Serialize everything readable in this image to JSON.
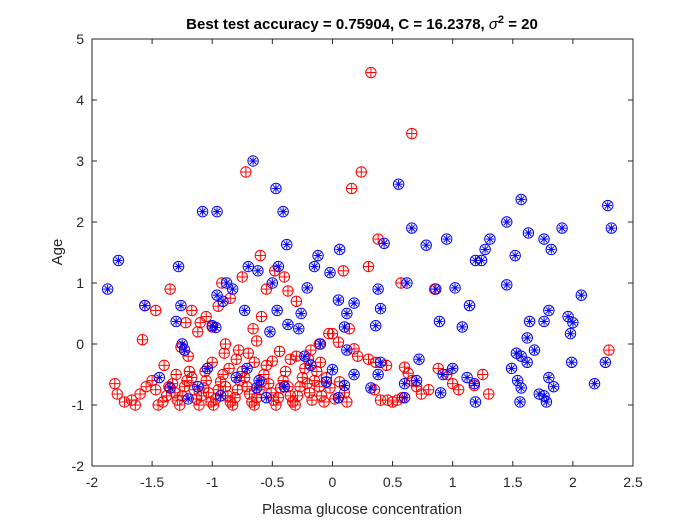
{
  "chart_data": {
    "type": "scatter",
    "title": {
      "prefix": "Best test accuracy = 0.75904, C = 16.2378, ",
      "sigma_symbol": "σ",
      "superscript": "2",
      "suffix": " = 20"
    },
    "xlabel": "Plasma glucose concentration",
    "ylabel": "Age",
    "xlim": [
      -2,
      2.5
    ],
    "ylim": [
      -2,
      5
    ],
    "xticks": [
      "-2",
      "-1.5",
      "-1",
      "-0.5",
      "0",
      "0.5",
      "1",
      "1.5",
      "2",
      "2.5"
    ],
    "yticks": [
      "-2",
      "-1",
      "0",
      "1",
      "2",
      "3",
      "4",
      "5"
    ],
    "grid": false,
    "legend": "none",
    "colors": {
      "red": "#ff0000",
      "blue": "#0000ff",
      "axis": "#262626"
    },
    "series": [
      {
        "marker": "circle with plus",
        "color": "#ff0000",
        "points": [
          [
            0.32,
            4.45
          ],
          [
            0.66,
            3.45
          ],
          [
            0.24,
            2.82
          ],
          [
            -0.72,
            2.82
          ],
          [
            0.16,
            2.55
          ],
          [
            0.38,
            1.72
          ],
          [
            -0.6,
            1.45
          ],
          [
            0.09,
            1.2
          ],
          [
            0.3,
            1.27
          ],
          [
            0.57,
            1.0
          ],
          [
            0.85,
            0.9
          ],
          [
            -1.35,
            0.9
          ],
          [
            -0.92,
            1.0
          ],
          [
            -0.37,
            0.87
          ],
          [
            -0.3,
            0.7
          ],
          [
            -1.17,
            0.55
          ],
          [
            -1.1,
            0.35
          ],
          [
            -1.0,
            0.28
          ],
          [
            -1.22,
            0.35
          ],
          [
            -1.47,
            0.55
          ],
          [
            -1.56,
            0.63
          ],
          [
            -1.58,
            0.07
          ],
          [
            -1.26,
            -0.05
          ],
          [
            -0.59,
            0.45
          ],
          [
            -0.63,
            0.05
          ],
          [
            -0.66,
            0.25
          ],
          [
            -0.89,
            0.0
          ],
          [
            -0.9,
            -0.15
          ],
          [
            -0.78,
            -0.1
          ],
          [
            -0.7,
            -0.15
          ],
          [
            -0.44,
            -0.12
          ],
          [
            -0.3,
            -0.2
          ],
          [
            -0.18,
            -0.1
          ],
          [
            -0.11,
            0.0
          ],
          [
            -0.03,
            0.17
          ],
          [
            0.0,
            0.17
          ],
          [
            0.05,
            0.03
          ],
          [
            0.14,
            0.25
          ],
          [
            0.18,
            -0.08
          ],
          [
            0.21,
            -0.2
          ],
          [
            0.3,
            -0.25
          ],
          [
            0.36,
            -0.3
          ],
          [
            0.45,
            -0.35
          ],
          [
            0.6,
            -0.38
          ],
          [
            0.63,
            -0.48
          ],
          [
            0.66,
            -0.6
          ],
          [
            0.7,
            -0.7
          ],
          [
            0.74,
            -0.82
          ],
          [
            0.8,
            -0.75
          ],
          [
            0.88,
            -0.4
          ],
          [
            0.95,
            -0.5
          ],
          [
            1.0,
            -0.65
          ],
          [
            1.05,
            -0.75
          ],
          [
            1.18,
            -0.68
          ],
          [
            1.25,
            -0.5
          ],
          [
            1.3,
            -0.82
          ],
          [
            0.4,
            -0.92
          ],
          [
            0.46,
            -0.92
          ],
          [
            0.5,
            -0.95
          ],
          [
            0.54,
            -0.92
          ],
          [
            0.58,
            -0.88
          ],
          [
            0.35,
            -0.75
          ],
          [
            2.3,
            -0.1
          ],
          [
            -0.48,
            1.2
          ],
          [
            -0.4,
            1.1
          ],
          [
            -0.55,
            0.9
          ],
          [
            -0.75,
            1.1
          ],
          [
            -0.85,
            0.75
          ],
          [
            -0.95,
            0.62
          ],
          [
            -1.05,
            0.45
          ],
          [
            -1.12,
            0.2
          ],
          [
            -1.81,
            -0.65
          ],
          [
            -1.79,
            -0.82
          ],
          [
            -1.73,
            -0.95
          ],
          [
            -1.67,
            -0.92
          ],
          [
            -1.64,
            -1.0
          ],
          [
            -1.6,
            -0.82
          ],
          [
            -1.55,
            -0.7
          ],
          [
            -1.5,
            -0.6
          ],
          [
            -1.47,
            -0.75
          ],
          [
            -1.45,
            -1.0
          ],
          [
            -1.41,
            -0.95
          ],
          [
            -1.38,
            -0.85
          ],
          [
            -1.36,
            -0.7
          ],
          [
            -1.33,
            -0.65
          ],
          [
            -1.31,
            -0.8
          ],
          [
            -1.29,
            -0.92
          ],
          [
            -1.27,
            -1.0
          ],
          [
            -1.25,
            -0.85
          ],
          [
            -1.23,
            -0.7
          ],
          [
            -1.21,
            -0.6
          ],
          [
            -1.19,
            -0.45
          ],
          [
            -1.17,
            -0.55
          ],
          [
            -1.15,
            -0.75
          ],
          [
            -1.13,
            -0.9
          ],
          [
            -1.11,
            -1.0
          ],
          [
            -1.09,
            -0.85
          ],
          [
            -1.07,
            -0.72
          ],
          [
            -1.05,
            -0.6
          ],
          [
            -1.03,
            -0.8
          ],
          [
            -1.01,
            -0.95
          ],
          [
            -0.99,
            -1.0
          ],
          [
            -0.97,
            -0.9
          ],
          [
            -0.95,
            -0.75
          ],
          [
            -0.93,
            -0.62
          ],
          [
            -0.91,
            -0.5
          ],
          [
            -0.89,
            -0.7
          ],
          [
            -0.87,
            -0.85
          ],
          [
            -0.85,
            -0.95
          ],
          [
            -0.83,
            -1.0
          ],
          [
            -0.81,
            -0.88
          ],
          [
            -0.79,
            -0.75
          ],
          [
            -0.77,
            -0.6
          ],
          [
            -0.75,
            -0.45
          ],
          [
            -0.73,
            -0.55
          ],
          [
            -0.71,
            -0.7
          ],
          [
            -0.69,
            -0.82
          ],
          [
            -0.67,
            -0.95
          ],
          [
            -0.65,
            -1.0
          ],
          [
            -0.63,
            -0.88
          ],
          [
            -0.61,
            -0.75
          ],
          [
            -0.59,
            -0.62
          ],
          [
            -0.57,
            -0.5
          ],
          [
            -0.55,
            -0.35
          ],
          [
            -0.53,
            -0.65
          ],
          [
            -0.51,
            -0.8
          ],
          [
            -0.49,
            -0.92
          ],
          [
            -0.47,
            -1.0
          ],
          [
            -0.45,
            -0.88
          ],
          [
            -0.43,
            -0.72
          ],
          [
            -0.41,
            -0.6
          ],
          [
            -0.39,
            -0.45
          ],
          [
            -0.37,
            -0.7
          ],
          [
            -0.35,
            -0.85
          ],
          [
            -0.33,
            -0.95
          ],
          [
            -0.31,
            -1.0
          ],
          [
            -0.29,
            -0.85
          ],
          [
            -0.27,
            -0.7
          ],
          [
            -0.25,
            -0.55
          ],
          [
            -0.23,
            -0.4
          ],
          [
            -0.21,
            -0.65
          ],
          [
            -0.19,
            -0.8
          ],
          [
            -0.17,
            -0.92
          ],
          [
            -0.15,
            -0.6
          ],
          [
            -0.13,
            -0.45
          ],
          [
            -0.11,
            -0.7
          ],
          [
            -0.09,
            -0.85
          ],
          [
            -0.07,
            -0.95
          ],
          [
            -0.05,
            -0.55
          ],
          [
            -0.02,
            -0.72
          ],
          [
            0.02,
            -0.9
          ],
          [
            0.06,
            -0.62
          ],
          [
            0.1,
            -0.8
          ],
          [
            0.12,
            -0.95
          ],
          [
            -0.1,
            -0.3
          ],
          [
            -0.2,
            -0.25
          ],
          [
            -0.35,
            -0.25
          ],
          [
            -0.5,
            -0.28
          ],
          [
            -0.65,
            -0.3
          ],
          [
            -1.0,
            -0.3
          ],
          [
            -0.8,
            -0.25
          ],
          [
            -1.4,
            -0.35
          ],
          [
            -1.2,
            -0.2
          ],
          [
            -0.86,
            -0.4
          ],
          [
            -1.06,
            -0.45
          ],
          [
            -1.3,
            -0.5
          ]
        ]
      },
      {
        "marker": "circle with star",
        "color": "#0000ff",
        "points": [
          [
            -1.87,
            0.9
          ],
          [
            -1.78,
            1.37
          ],
          [
            -1.56,
            0.63
          ],
          [
            -1.28,
            1.27
          ],
          [
            -1.26,
            0.63
          ],
          [
            -1.3,
            0.37
          ],
          [
            -1.25,
            0.0
          ],
          [
            -1.08,
            2.17
          ],
          [
            -0.96,
            2.17
          ],
          [
            -0.96,
            0.8
          ],
          [
            -0.97,
            0.27
          ],
          [
            -0.66,
            3.0
          ],
          [
            -0.47,
            2.55
          ],
          [
            -0.41,
            2.17
          ],
          [
            -0.38,
            1.63
          ],
          [
            -0.45,
            1.27
          ],
          [
            -0.5,
            1.0
          ],
          [
            -0.62,
            1.2
          ],
          [
            -0.73,
            0.55
          ],
          [
            -0.88,
            1.0
          ],
          [
            -0.91,
            0.7
          ],
          [
            -1.0,
            0.3
          ],
          [
            -0.71,
            -0.4
          ],
          [
            -0.61,
            -0.6
          ],
          [
            -0.52,
            0.2
          ],
          [
            -0.46,
            0.55
          ],
          [
            -0.37,
            0.32
          ],
          [
            -0.26,
            0.5
          ],
          [
            -0.21,
            0.92
          ],
          [
            -0.15,
            1.27
          ],
          [
            -0.12,
            1.45
          ],
          [
            -0.02,
            1.17
          ],
          [
            0.06,
            1.55
          ],
          [
            0.05,
            0.72
          ],
          [
            0.12,
            0.5
          ],
          [
            0.18,
            0.67
          ],
          [
            0.1,
            0.28
          ],
          [
            0.12,
            -0.1
          ],
          [
            0.38,
            0.9
          ],
          [
            0.43,
            1.65
          ],
          [
            0.55,
            2.62
          ],
          [
            0.36,
            0.3
          ],
          [
            0.4,
            0.58
          ],
          [
            0.62,
            1.0
          ],
          [
            0.66,
            1.9
          ],
          [
            0.78,
            1.62
          ],
          [
            0.72,
            -0.25
          ],
          [
            0.89,
            0.37
          ],
          [
            0.95,
            1.72
          ],
          [
            1.02,
            0.92
          ],
          [
            1.08,
            0.28
          ],
          [
            1.14,
            0.63
          ],
          [
            1.19,
            1.37
          ],
          [
            1.24,
            1.37
          ],
          [
            1.27,
            1.55
          ],
          [
            1.31,
            1.72
          ],
          [
            1.45,
            2.0
          ],
          [
            1.52,
            1.45
          ],
          [
            1.57,
            2.37
          ],
          [
            1.63,
            1.82
          ],
          [
            1.76,
            1.72
          ],
          [
            1.82,
            1.55
          ],
          [
            1.91,
            1.9
          ],
          [
            2.07,
            0.8
          ],
          [
            1.45,
            0.97
          ],
          [
            1.64,
            0.37
          ],
          [
            1.76,
            0.37
          ],
          [
            1.8,
            0.55
          ],
          [
            1.96,
            0.45
          ],
          [
            2.0,
            0.35
          ],
          [
            1.98,
            0.17
          ],
          [
            1.68,
            -0.1
          ],
          [
            1.53,
            -0.15
          ],
          [
            1.57,
            -0.2
          ],
          [
            1.62,
            -0.3
          ],
          [
            1.49,
            -0.4
          ],
          [
            1.57,
            -0.72
          ],
          [
            1.72,
            -0.82
          ],
          [
            1.8,
            -0.55
          ],
          [
            1.84,
            -0.7
          ],
          [
            1.76,
            -0.85
          ],
          [
            1.78,
            -0.95
          ],
          [
            1.99,
            -0.3
          ],
          [
            2.18,
            -0.65
          ],
          [
            2.27,
            -0.3
          ],
          [
            2.29,
            2.27
          ],
          [
            2.32,
            1.9
          ],
          [
            1.56,
            -0.95
          ],
          [
            1.54,
            -0.6
          ],
          [
            1.18,
            -0.65
          ],
          [
            1.19,
            -0.95
          ],
          [
            1.0,
            -0.4
          ],
          [
            0.9,
            -0.8
          ],
          [
            0.92,
            -0.5
          ],
          [
            0.7,
            -0.6
          ],
          [
            0.6,
            -0.88
          ],
          [
            0.38,
            -0.5
          ],
          [
            0.32,
            -0.72
          ],
          [
            0.18,
            -0.5
          ],
          [
            0.1,
            -0.68
          ],
          [
            0.05,
            -0.88
          ],
          [
            -0.05,
            -0.62
          ],
          [
            -0.18,
            -0.35
          ],
          [
            -0.23,
            -0.2
          ],
          [
            -0.1,
            0.0
          ],
          [
            0.0,
            -0.42
          ],
          [
            -0.4,
            -0.7
          ],
          [
            -0.55,
            -0.88
          ],
          [
            -0.63,
            -0.72
          ],
          [
            -0.8,
            -0.55
          ],
          [
            -0.93,
            -0.85
          ],
          [
            -1.04,
            -0.4
          ],
          [
            -1.12,
            -0.7
          ],
          [
            -1.2,
            -0.9
          ],
          [
            -1.35,
            -0.72
          ],
          [
            -1.44,
            -0.55
          ],
          [
            -0.7,
            1.27
          ],
          [
            -0.83,
            0.9
          ],
          [
            -1.23,
            -0.1
          ],
          [
            -0.28,
            0.25
          ],
          [
            0.6,
            -0.65
          ],
          [
            0.4,
            -0.3
          ],
          [
            0.86,
            0.9
          ],
          [
            1.12,
            -0.55
          ],
          [
            1.62,
            0.1
          ]
        ]
      }
    ]
  }
}
